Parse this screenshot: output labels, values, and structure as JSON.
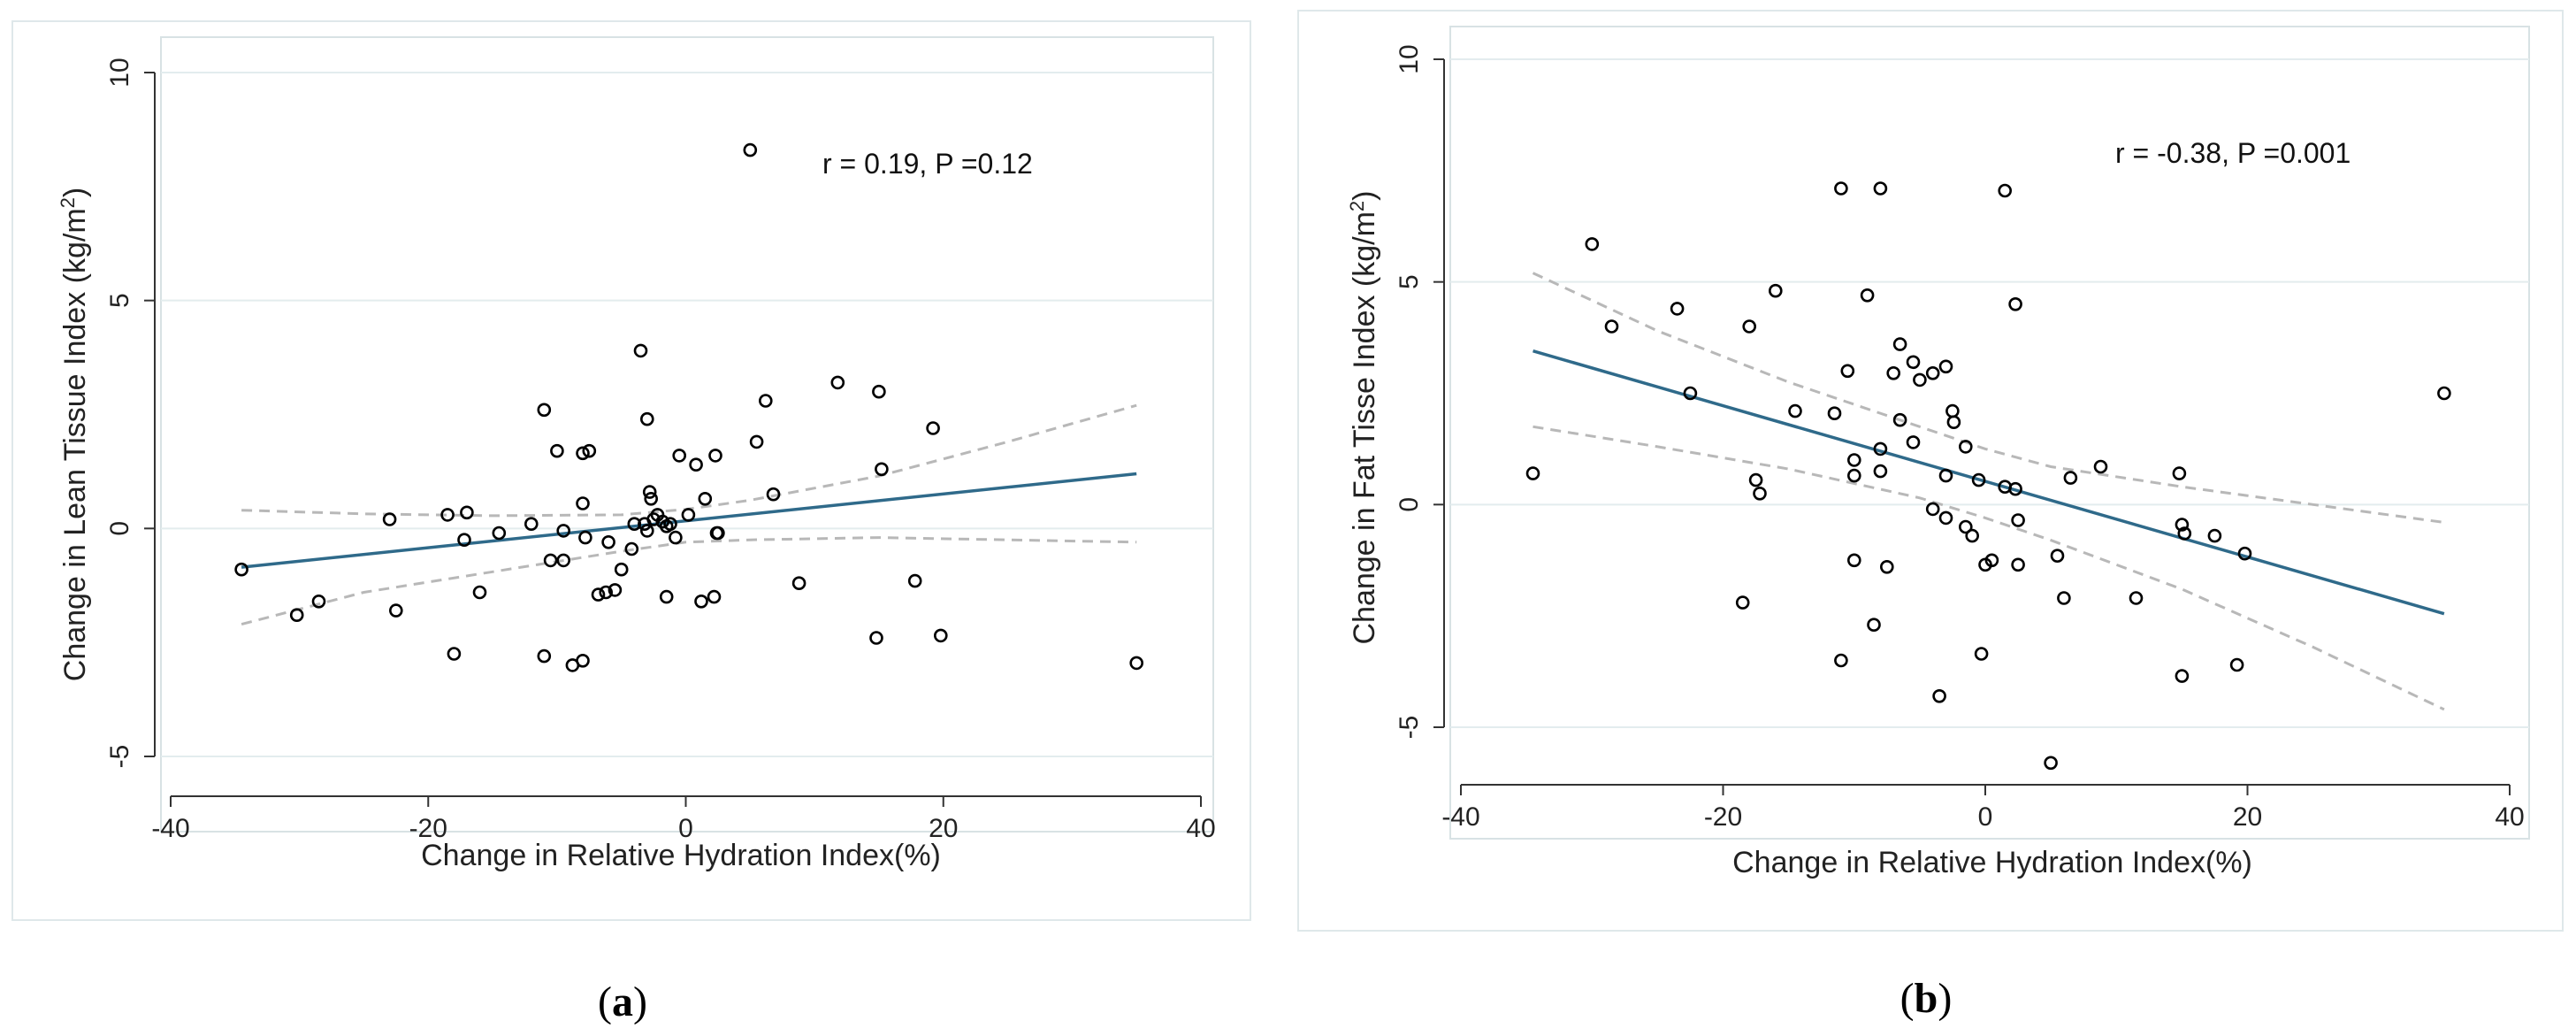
{
  "chart_data": [
    {
      "type": "scatter",
      "panel_label": "(a)",
      "panel_letter": "a",
      "xlabel": "Change in Relative Hydration Index(%)",
      "ylabel_text": "Change in Lean Tissue Index (kg/m",
      "ylabel_sup": "2",
      "ylabel_close": ")",
      "annotation": "r = 0.19, P =0.12",
      "xlim": [
        -40,
        40
      ],
      "ylim": [
        -5,
        10
      ],
      "xticks": [
        -40,
        -20,
        0,
        20,
        40
      ],
      "yticks": [
        -5,
        0,
        5,
        10
      ],
      "grid": true,
      "colors": {
        "fit": "#2f6a8a",
        "ci": "#b8b8b8",
        "points": "#000000",
        "grid": "#e3ecee"
      },
      "fit": {
        "x": [
          -34.5,
          35
        ],
        "y": [
          -0.85,
          1.2
        ]
      },
      "ci_upper": {
        "x": [
          -34.5,
          -25,
          -15,
          -5,
          0,
          5,
          15,
          25,
          35
        ],
        "y": [
          0.4,
          0.32,
          0.28,
          0.3,
          0.42,
          0.62,
          1.15,
          1.9,
          2.7
        ]
      },
      "ci_lower": {
        "x": [
          -34.5,
          -25,
          -15,
          -5,
          0,
          5,
          15,
          25,
          35
        ],
        "y": [
          -2.1,
          -1.4,
          -0.95,
          -0.5,
          -0.3,
          -0.25,
          -0.2,
          -0.25,
          -0.3
        ]
      },
      "points": {
        "x": [
          5,
          -3.5,
          11.8,
          15,
          -11,
          6.2,
          -3,
          19.2,
          -10,
          2.3,
          -0.5,
          -7.5,
          -8,
          0.8,
          5.5,
          15.2,
          1.5,
          6.8,
          -2.8,
          -2.7,
          -2.2,
          -2.5,
          -1.8,
          0.2,
          -8,
          -3,
          -12,
          -14.5,
          -17.2,
          -18.5,
          -23,
          -17,
          -9.5,
          -7.8,
          -4.2,
          -0.8,
          -1.2,
          -1.5,
          2.5,
          -3.2,
          -6,
          -9.5,
          -10.5,
          -34.5,
          -28.5,
          -22.5,
          -16,
          -6.8,
          -6.2,
          -5.5,
          -5,
          -1.5,
          2.2,
          1.2,
          8.8,
          17.8,
          -30.2,
          -18,
          -11,
          -8.8,
          -8,
          14.8,
          19.8,
          35,
          2.4,
          -4
        ],
        "y": [
          8.3,
          3.9,
          3.2,
          3,
          2.6,
          2.8,
          2.4,
          2.2,
          1.7,
          1.6,
          1.6,
          1.7,
          1.65,
          1.4,
          1.9,
          1.3,
          0.65,
          0.75,
          0.8,
          0.65,
          0.3,
          0.2,
          0.15,
          0.3,
          0.55,
          -0.05,
          0.1,
          -0.1,
          -0.25,
          0.3,
          0.2,
          0.35,
          -0.05,
          -0.2,
          -0.45,
          -0.2,
          0.1,
          0.05,
          -0.1,
          0.1,
          -0.3,
          -0.7,
          -0.7,
          -0.9,
          -1.6,
          -1.8,
          -1.4,
          -1.45,
          -1.4,
          -1.35,
          -0.9,
          -1.5,
          -1.5,
          -1.6,
          -1.2,
          -1.15,
          -1.9,
          -2.75,
          -2.8,
          -3,
          -2.9,
          -2.4,
          -2.35,
          -2.95,
          -0.1,
          0.1
        ]
      }
    },
    {
      "type": "scatter",
      "panel_label": "(b)",
      "panel_letter": "b",
      "xlabel": "Change in Relative Hydration Index(%)",
      "ylabel_text": "Change in Fat Tisse Index (kg/m",
      "ylabel_sup": "2",
      "ylabel_close": ")",
      "annotation": "r = -0.38, P =0.001",
      "xlim": [
        -40,
        40
      ],
      "ylim": [
        -6,
        10
      ],
      "xticks": [
        -40,
        -20,
        0,
        20,
        40
      ],
      "yticks": [
        -5,
        0,
        5,
        10
      ],
      "grid": true,
      "colors": {
        "fit": "#2f6a8a",
        "ci": "#b8b8b8",
        "points": "#000000",
        "grid": "#e3ecee"
      },
      "fit": {
        "x": [
          -34.5,
          35
        ],
        "y": [
          3.45,
          -2.45
        ]
      },
      "ci_upper": {
        "x": [
          -34.5,
          -25,
          -15,
          -5,
          0,
          5,
          15,
          25,
          35
        ],
        "y": [
          5.2,
          3.9,
          2.75,
          1.75,
          1.25,
          0.85,
          0.4,
          0.0,
          -0.4
        ]
      },
      "ci_lower": {
        "x": [
          -34.5,
          -25,
          -15,
          -5,
          0,
          5,
          15,
          25,
          35
        ],
        "y": [
          1.75,
          1.3,
          0.8,
          0.15,
          -0.3,
          -0.8,
          -1.9,
          -3.2,
          -4.6
        ]
      },
      "points": {
        "x": [
          -11,
          -8,
          1.5,
          -30,
          2.3,
          -9,
          -16,
          -23.5,
          -28.5,
          -18,
          -6.5,
          -5.5,
          -3,
          -4,
          -10.5,
          -5,
          -7,
          -14.5,
          -11.5,
          -6.5,
          -2.5,
          -2.4,
          -22.5,
          -17.5,
          -17.2,
          -8,
          -10,
          -5.5,
          -1.5,
          1.5,
          2.3,
          -8,
          -10,
          -0.5,
          6.5,
          8.8,
          14.8,
          35,
          -34.5,
          -3,
          -4,
          -3,
          -1.5,
          -1,
          2.5,
          15,
          15.2,
          17.5,
          19.8,
          -7.5,
          -10,
          0.5,
          0,
          2.5,
          5.5,
          6,
          11.5,
          -18.5,
          -8.5,
          -11,
          -0.3,
          15,
          19.2,
          -3.5,
          5
        ],
        "y": [
          7.1,
          7.1,
          7.05,
          5.85,
          4.5,
          4.7,
          4.8,
          4.4,
          4,
          4,
          3.6,
          3.2,
          3.1,
          2.95,
          3,
          2.8,
          2.95,
          2.1,
          2.05,
          1.9,
          2.1,
          1.85,
          2.5,
          0.55,
          0.25,
          1.25,
          1,
          1.4,
          1.3,
          0.4,
          0.35,
          0.75,
          0.65,
          0.55,
          0.6,
          0.85,
          0.7,
          2.5,
          0.7,
          0.65,
          -0.1,
          -0.3,
          -0.5,
          -0.7,
          -0.35,
          -0.45,
          -0.65,
          -0.7,
          -1.1,
          -1.4,
          -1.25,
          -1.25,
          -1.35,
          -1.35,
          -1.15,
          -2.1,
          -2.1,
          -2.2,
          -2.7,
          -3.5,
          -3.35,
          -3.85,
          -3.6,
          -4.3,
          -5.8
        ]
      }
    }
  ]
}
